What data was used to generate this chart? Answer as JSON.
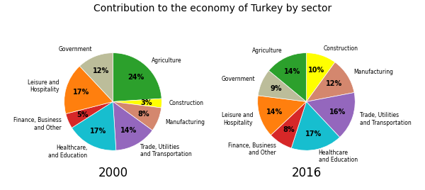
{
  "title": "Contribution to the economy of Turkey by sector",
  "chart1_year": "2000",
  "chart2_year": "2016",
  "sectors1": [
    "Agriculture",
    "Construction",
    "Manufacturing",
    "Trade, Utilities\nand Transportation",
    "Healthcare,\nand Education",
    "Finance, Business\nand Other",
    "Leisure and\nHospitality",
    "Government"
  ],
  "sectors2": [
    "Construction",
    "Manufacturing",
    "Trade, Utilities\nand Transportation",
    "Healthcare\nand Education",
    "Finance, Business\nand Other",
    "Leisure and\nHospitality",
    "Government",
    "Agriculture"
  ],
  "values1": [
    24,
    3,
    8,
    14,
    17,
    5,
    17,
    12
  ],
  "values2": [
    10,
    12,
    16,
    17,
    8,
    14,
    9,
    14
  ],
  "colors1": [
    "#2ca02c",
    "#ffff00",
    "#d4876e",
    "#9467bd",
    "#17becf",
    "#d62728",
    "#ff7f0e",
    "#bcbd9a"
  ],
  "colors2": [
    "#ffff00",
    "#d4876e",
    "#9467bd",
    "#17becf",
    "#d62728",
    "#ff7f0e",
    "#bcbd9a",
    "#2ca02c"
  ],
  "title_fontsize": 10,
  "label_fontsize": 5.5,
  "pct_fontsize": 7,
  "year_fontsize": 12
}
